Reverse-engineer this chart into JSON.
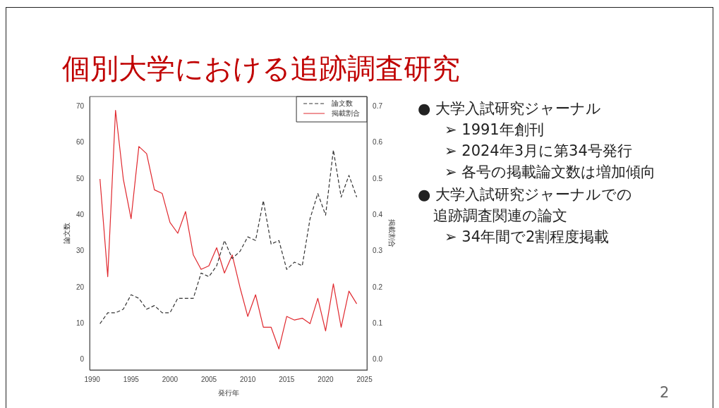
{
  "chart_data": {
    "type": "line",
    "title": "個別大学における追跡調査研究",
    "xlabel": "発行年",
    "ylabel": "論文数",
    "y2label": "掲載割合",
    "x": [
      1991,
      1992,
      1993,
      1994,
      1995,
      1996,
      1997,
      1998,
      1999,
      2000,
      2001,
      2002,
      2003,
      2004,
      2005,
      2006,
      2007,
      2008,
      2009,
      2010,
      2011,
      2012,
      2013,
      2014,
      2015,
      2016,
      2017,
      2018,
      2019,
      2020,
      2021,
      2022,
      2023,
      2024
    ],
    "series": [
      {
        "name": "論文数",
        "color": "#333333",
        "line_style": "dashed",
        "values": [
          10,
          13,
          13,
          14,
          18,
          17,
          14,
          15,
          13,
          13,
          17,
          17,
          17,
          24,
          23,
          26,
          33,
          28,
          30,
          34,
          33,
          44,
          32,
          33,
          25,
          27,
          26,
          39,
          46,
          40,
          58,
          45,
          51,
          45
        ]
      },
      {
        "name": "掲載割合",
        "color": "#e0282e",
        "line_style": "solid",
        "axis": "y2",
        "values": [
          0.5,
          0.23,
          0.69,
          0.5,
          0.39,
          0.59,
          0.57,
          0.47,
          0.46,
          0.38,
          0.35,
          0.41,
          0.29,
          0.25,
          0.26,
          0.31,
          0.24,
          0.29,
          0.2,
          0.12,
          0.18,
          0.09,
          0.09,
          0.03,
          0.12,
          0.11,
          0.115,
          0.1,
          0.17,
          0.08,
          0.21,
          0.09,
          0.19,
          0.155
        ]
      }
    ],
    "xlim": [
      1989.68,
      2025.32
    ],
    "xticks": [
      1990,
      1995,
      2000,
      2005,
      2010,
      2015,
      2020,
      2025
    ],
    "ylim": [
      -2.8,
      72.8
    ],
    "yticks": [
      0,
      10,
      20,
      30,
      40,
      50,
      60,
      70
    ],
    "y2lim": [
      -0.028,
      0.728
    ],
    "y2ticks": [
      {
        "value": 0,
        "label": "0.0"
      },
      0.1,
      0.2,
      0.3,
      0.4,
      0.5,
      0.6,
      0.7
    ],
    "grid": false,
    "legend": "top right",
    "marker": "none",
    "annotations": [
      "● 大学入試研究ジャーナル",
      "➢ 1991年創刊",
      "➢ 2024年3月に第34号発行",
      "➢ 各号の掲載論文数は増加傾向",
      "● 大学入試研究ジャーナルでの",
      "追跡調査関連の論文",
      "➢ 34年間で2割程度掲載",
      "2"
    ]
  }
}
